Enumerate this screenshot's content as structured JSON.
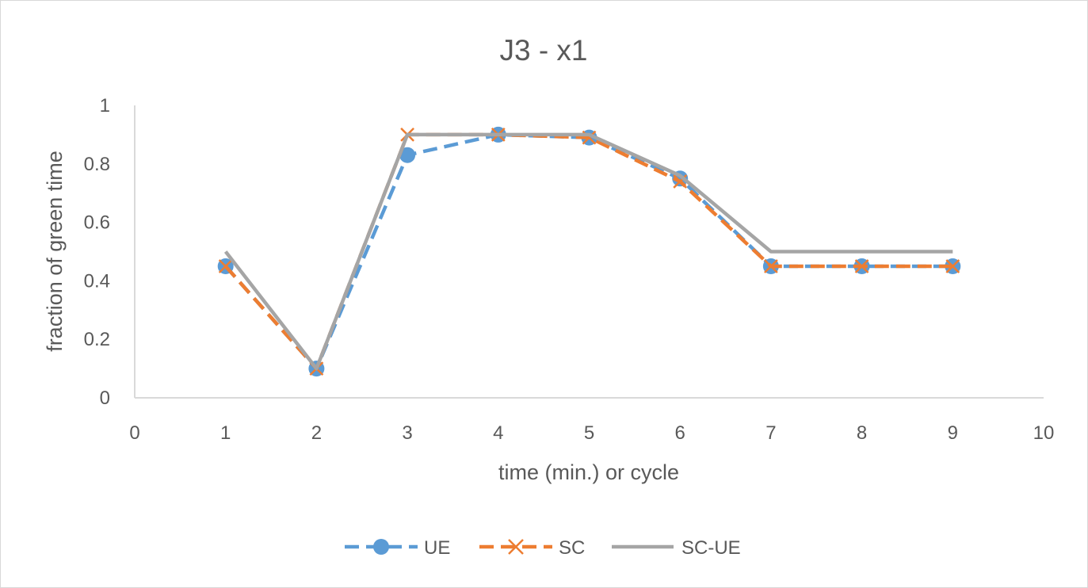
{
  "chart_data": {
    "type": "line",
    "title": "J3 - x1",
    "xlabel": "time (min.) or cycle",
    "ylabel": "fraction of green time",
    "xlim": [
      0,
      10
    ],
    "ylim": [
      0,
      1
    ],
    "x_ticks": [
      "0",
      "1",
      "2",
      "3",
      "4",
      "5",
      "6",
      "7",
      "8",
      "9",
      "10"
    ],
    "y_ticks": [
      "0",
      "0.2",
      "0.4",
      "0.6",
      "0.8",
      "1"
    ],
    "grid": false,
    "legend_position": "bottom",
    "x": [
      1,
      2,
      3,
      4,
      5,
      6,
      7,
      8,
      9
    ],
    "series": [
      {
        "name": "UE",
        "color": "#5b9bd5",
        "line": "dashed",
        "marker": "circle",
        "values": [
          0.45,
          0.1,
          0.83,
          0.9,
          0.89,
          0.75,
          0.45,
          0.45,
          0.45
        ]
      },
      {
        "name": "SC",
        "color": "#ed7d31",
        "line": "dashed",
        "marker": "x",
        "values": [
          0.45,
          0.1,
          0.9,
          0.9,
          0.89,
          0.74,
          0.45,
          0.45,
          0.45
        ]
      },
      {
        "name": "SC-UE",
        "color": "#a5a5a5",
        "line": "solid",
        "marker": "none",
        "values": [
          0.5,
          0.1,
          0.9,
          0.9,
          0.9,
          0.76,
          0.5,
          0.5,
          0.5
        ]
      }
    ]
  }
}
